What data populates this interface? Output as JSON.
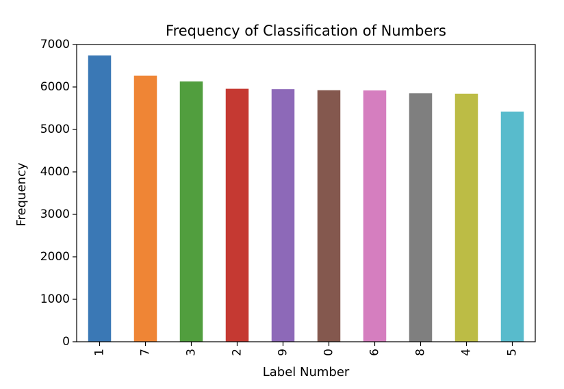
{
  "chart_data": {
    "type": "bar",
    "title": "Frequency of Classification of Numbers",
    "xlabel": "Label Number",
    "ylabel": "Frequency",
    "categories": [
      "1",
      "7",
      "3",
      "2",
      "9",
      "0",
      "6",
      "8",
      "4",
      "5"
    ],
    "values": [
      6742,
      6265,
      6131,
      5958,
      5949,
      5923,
      5918,
      5851,
      5842,
      5421
    ],
    "colors": [
      "#3a78b5",
      "#ef8535",
      "#519e3e",
      "#c53932",
      "#8d69b8",
      "#84584e",
      "#d57ebf",
      "#7f7f7f",
      "#bcbc45",
      "#58bbcc"
    ],
    "ylim": [
      0,
      7000
    ],
    "yticks": [
      0,
      1000,
      2000,
      3000,
      4000,
      5000,
      6000,
      7000
    ],
    "xtick_rotation": "vertical",
    "grid": false,
    "legend": "none"
  }
}
